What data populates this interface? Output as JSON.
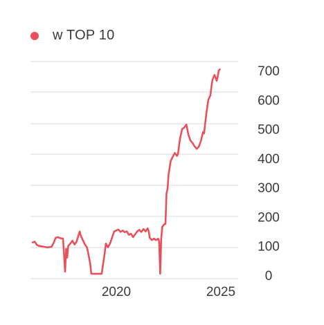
{
  "chart_data": {
    "type": "line",
    "title": "",
    "xlabel": "",
    "ylabel": "",
    "legend": {
      "position": "top-left"
    },
    "grid": true,
    "ylim": [
      0,
      720
    ],
    "xlim": [
      2015.9,
      2025.2
    ],
    "y_ticks": [
      {
        "value": 0,
        "label": "0"
      },
      {
        "value": 100,
        "label": "100"
      },
      {
        "value": 200,
        "label": "200"
      },
      {
        "value": 300,
        "label": "300"
      },
      {
        "value": 400,
        "label": "400"
      },
      {
        "value": 500,
        "label": "500"
      },
      {
        "value": 600,
        "label": "600"
      },
      {
        "value": 700,
        "label": "700"
      }
    ],
    "x_ticks": [
      {
        "value": 2020,
        "label": "2020"
      },
      {
        "value": 2025,
        "label": "2025"
      }
    ],
    "series": [
      {
        "name": "w TOP 10",
        "color": "#e8505b",
        "points": [
          [
            2016.0,
            112
          ],
          [
            2016.1,
            115
          ],
          [
            2016.2,
            104
          ],
          [
            2016.3,
            100
          ],
          [
            2016.5,
            98
          ],
          [
            2016.7,
            95
          ],
          [
            2016.9,
            97
          ],
          [
            2017.0,
            110
          ],
          [
            2017.1,
            128
          ],
          [
            2017.2,
            130
          ],
          [
            2017.35,
            126
          ],
          [
            2017.45,
            125
          ],
          [
            2017.5,
            70
          ],
          [
            2017.55,
            12
          ],
          [
            2017.6,
            90
          ],
          [
            2017.65,
            60
          ],
          [
            2017.7,
            100
          ],
          [
            2017.8,
            108
          ],
          [
            2017.9,
            118
          ],
          [
            2018.0,
            105
          ],
          [
            2018.1,
            115
          ],
          [
            2018.2,
            138
          ],
          [
            2018.25,
            150
          ],
          [
            2018.3,
            135
          ],
          [
            2018.4,
            120
          ],
          [
            2018.5,
            105
          ],
          [
            2018.6,
            95
          ],
          [
            2018.7,
            60
          ],
          [
            2018.75,
            40
          ],
          [
            2018.8,
            5
          ],
          [
            2019.0,
            5
          ],
          [
            2019.2,
            5
          ],
          [
            2019.3,
            5
          ],
          [
            2019.45,
            78
          ],
          [
            2019.5,
            108
          ],
          [
            2019.6,
            95
          ],
          [
            2019.7,
            108
          ],
          [
            2019.8,
            130
          ],
          [
            2019.9,
            150
          ],
          [
            2020.0,
            153
          ],
          [
            2020.1,
            156
          ],
          [
            2020.2,
            148
          ],
          [
            2020.3,
            153
          ],
          [
            2020.4,
            147
          ],
          [
            2020.5,
            150
          ],
          [
            2020.6,
            138
          ],
          [
            2020.7,
            142
          ],
          [
            2020.8,
            130
          ],
          [
            2020.9,
            140
          ],
          [
            2021.0,
            150
          ],
          [
            2021.1,
            155
          ],
          [
            2021.2,
            148
          ],
          [
            2021.3,
            158
          ],
          [
            2021.4,
            150
          ],
          [
            2021.5,
            160
          ],
          [
            2021.55,
            150
          ],
          [
            2021.6,
            128
          ],
          [
            2021.7,
            120
          ],
          [
            2021.8,
            125
          ],
          [
            2021.9,
            120
          ],
          [
            2022.0,
            125
          ],
          [
            2022.05,
            115
          ],
          [
            2022.1,
            5
          ],
          [
            2022.15,
            125
          ],
          [
            2022.2,
            165
          ],
          [
            2022.3,
            175
          ],
          [
            2022.35,
            175
          ],
          [
            2022.4,
            280
          ],
          [
            2022.45,
            295
          ],
          [
            2022.5,
            345
          ],
          [
            2022.6,
            390
          ],
          [
            2022.7,
            405
          ],
          [
            2022.8,
            418
          ],
          [
            2022.9,
            408
          ],
          [
            2022.95,
            415
          ],
          [
            2023.05,
            468
          ],
          [
            2023.15,
            500
          ],
          [
            2023.25,
            505
          ],
          [
            2023.35,
            515
          ],
          [
            2023.45,
            480
          ],
          [
            2023.55,
            460
          ],
          [
            2023.65,
            452
          ],
          [
            2023.75,
            440
          ],
          [
            2023.85,
            432
          ],
          [
            2023.95,
            440
          ],
          [
            2024.05,
            460
          ],
          [
            2024.15,
            490
          ],
          [
            2024.2,
            485
          ],
          [
            2024.25,
            520
          ],
          [
            2024.3,
            550
          ],
          [
            2024.4,
            600
          ],
          [
            2024.5,
            615
          ],
          [
            2024.55,
            645
          ],
          [
            2024.6,
            668
          ],
          [
            2024.7,
            685
          ],
          [
            2024.8,
            665
          ],
          [
            2024.85,
            680
          ],
          [
            2024.9,
            700
          ],
          [
            2024.95,
            704
          ]
        ]
      }
    ]
  }
}
